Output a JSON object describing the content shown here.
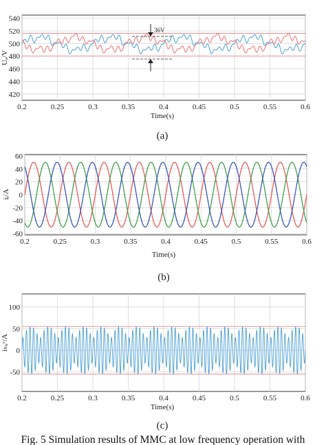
{
  "chart_data": [
    {
      "type": "line",
      "panel_label": "(a)",
      "xlabel": "Time(s)",
      "ylabel": "Uₐ/V",
      "xlim": [
        0.2,
        0.6
      ],
      "ylim": [
        410,
        545
      ],
      "xticks": [
        "0.2",
        "0.25",
        "0.3",
        "0.35",
        "0.4",
        "0.45",
        "0.5",
        "0.55",
        "0.6"
      ],
      "yticks": [
        "420",
        "440",
        "460",
        "480",
        "500",
        "520",
        "540"
      ],
      "grid": true,
      "annotation": "36V",
      "series": [
        {
          "color": "#5aa8d8",
          "x": [
            0.2,
            0.25,
            0.3,
            0.35,
            0.4,
            0.45,
            0.5,
            0.55,
            0.6
          ],
          "values": [
            500,
            488,
            510,
            492,
            508,
            490,
            509,
            494,
            512
          ]
        },
        {
          "color": "#ee7b7b",
          "x": [
            0.2,
            0.25,
            0.3,
            0.35,
            0.4,
            0.45,
            0.5,
            0.55,
            0.6
          ],
          "values": [
            500,
            508,
            490,
            506,
            492,
            508,
            491,
            505,
            490
          ]
        }
      ],
      "ref_lines": [
        516,
        480
      ]
    },
    {
      "type": "line",
      "panel_label": "(b)",
      "xlabel": "Time(s)",
      "ylabel": "iⱼ/A",
      "xlim": [
        0.2,
        0.6
      ],
      "ylim": [
        -62,
        62
      ],
      "xticks": [
        "0.2",
        "0.25",
        "0.3",
        "0.35",
        "0.4",
        "0.45",
        "0.5",
        "0.55",
        "0.6"
      ],
      "yticks": [
        "60",
        "40",
        "20",
        "0",
        "-20",
        "-40",
        "-60"
      ],
      "grid": true,
      "series": [
        {
          "color": "#e85a5a",
          "amplitude": 50,
          "frequency_hz": 20,
          "phase_deg": 0
        },
        {
          "color": "#3fa04a",
          "amplitude": 50,
          "frequency_hz": 20,
          "phase_deg": -120
        },
        {
          "color": "#3a55b8",
          "amplitude": 50,
          "frequency_hz": 20,
          "phase_deg": 120
        }
      ]
    },
    {
      "type": "line",
      "panel_label": "(c)",
      "xlabel": "Time(s)",
      "ylabel": "iₕᵢᵣᶜ/A",
      "xlim": [
        0.2,
        0.6
      ],
      "ylim": [
        -95,
        130
      ],
      "xticks": [
        "0.2",
        "0.25",
        "0.3",
        "0.35",
        "0.4",
        "0.45",
        "0.5",
        "0.55",
        "0.6"
      ],
      "yticks": [
        "100",
        "50",
        "0",
        "-50"
      ],
      "grid": true,
      "series": [
        {
          "color": "#4a9ed6",
          "amplitude": 55,
          "carrier_hz": 200,
          "envelope_hz": 20
        }
      ],
      "ref_lines": [
        55,
        -55
      ]
    }
  ],
  "caption": "Fig. 5 Simulation results of MMC at low frequency operation with"
}
